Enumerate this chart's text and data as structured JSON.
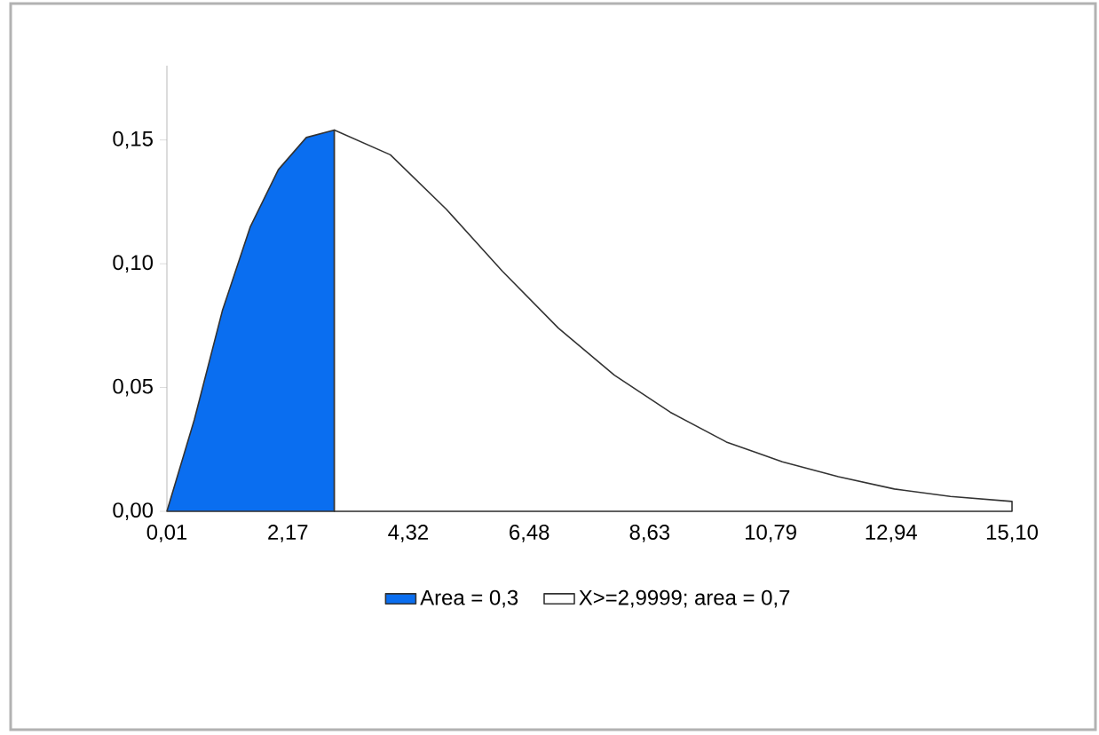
{
  "chart_data": {
    "type": "area",
    "xlim": [
      0.01,
      15.1
    ],
    "ylim": [
      0,
      0.18
    ],
    "xticks": [
      {
        "value": 0.01,
        "label": "0,01"
      },
      {
        "value": 2.17,
        "label": "2,17"
      },
      {
        "value": 4.32,
        "label": "4,32"
      },
      {
        "value": 6.48,
        "label": "6,48"
      },
      {
        "value": 8.63,
        "label": "8,63"
      },
      {
        "value": 10.79,
        "label": "10,79"
      },
      {
        "value": 12.94,
        "label": "12,94"
      },
      {
        "value": 15.1,
        "label": "15,10"
      }
    ],
    "yticks": [
      {
        "value": 0,
        "label": "0,00"
      },
      {
        "value": 0.05,
        "label": "0,05"
      },
      {
        "value": 0.1,
        "label": "0,10"
      },
      {
        "value": 0.15,
        "label": "0,15"
      }
    ],
    "grid": false,
    "legend": "bottom",
    "series": [
      {
        "name": "Area = 0,3",
        "color": "#0a6ef0",
        "x": [
          0.01,
          0.5,
          1,
          1.5,
          2,
          2.5,
          2.9999
        ],
        "values": [
          0.0,
          0.037,
          0.081,
          0.115,
          0.138,
          0.151,
          0.154
        ]
      },
      {
        "name": "X>=2,9999; area = 0,7",
        "color": "#ffffff",
        "x": [
          3,
          4,
          5,
          6,
          7,
          8,
          9,
          10,
          11,
          12,
          13,
          14,
          15.1
        ],
        "values": [
          0.154,
          0.144,
          0.122,
          0.097,
          0.074,
          0.055,
          0.04,
          0.028,
          0.02,
          0.014,
          0.009,
          0.006,
          0.004
        ]
      }
    ]
  }
}
